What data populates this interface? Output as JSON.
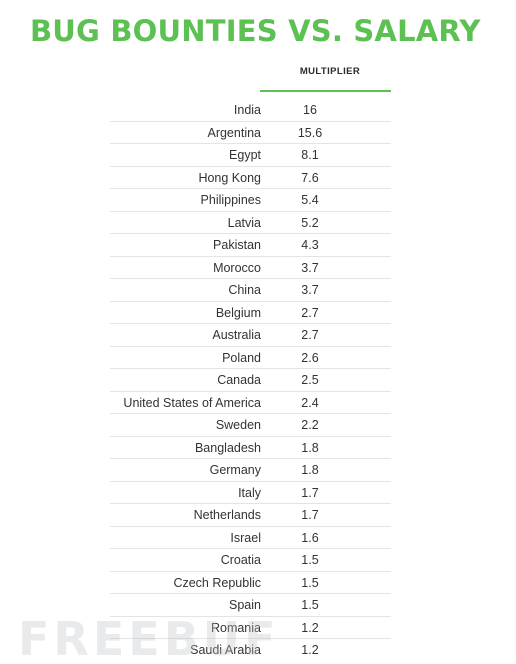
{
  "chart_data": {
    "type": "table",
    "title": "BUG BOUNTIES VS. SALARY",
    "column_header": "MULTIPLIER",
    "rows": [
      {
        "country": "India",
        "multiplier": "16"
      },
      {
        "country": "Argentina",
        "multiplier": "15.6"
      },
      {
        "country": "Egypt",
        "multiplier": "8.1"
      },
      {
        "country": "Hong Kong",
        "multiplier": "7.6"
      },
      {
        "country": "Philippines",
        "multiplier": "5.4"
      },
      {
        "country": "Latvia",
        "multiplier": "5.2"
      },
      {
        "country": "Pakistan",
        "multiplier": "4.3"
      },
      {
        "country": "Morocco",
        "multiplier": "3.7"
      },
      {
        "country": "China",
        "multiplier": "3.7"
      },
      {
        "country": "Belgium",
        "multiplier": "2.7"
      },
      {
        "country": "Australia",
        "multiplier": "2.7"
      },
      {
        "country": "Poland",
        "multiplier": "2.6"
      },
      {
        "country": "Canada",
        "multiplier": "2.5"
      },
      {
        "country": "United States of America",
        "multiplier": "2.4"
      },
      {
        "country": "Sweden",
        "multiplier": "2.2"
      },
      {
        "country": "Bangladesh",
        "multiplier": "1.8"
      },
      {
        "country": "Germany",
        "multiplier": "1.8"
      },
      {
        "country": "Italy",
        "multiplier": "1.7"
      },
      {
        "country": "Netherlands",
        "multiplier": "1.7"
      },
      {
        "country": "Israel",
        "multiplier": "1.6"
      },
      {
        "country": "Croatia",
        "multiplier": "1.5"
      },
      {
        "country": "Czech Republic",
        "multiplier": "1.5"
      },
      {
        "country": "Spain",
        "multiplier": "1.5"
      },
      {
        "country": "Romania",
        "multiplier": "1.2"
      },
      {
        "country": "Saudi Arabia",
        "multiplier": "1.2"
      }
    ]
  },
  "colors": {
    "title": "#5cc052",
    "header_rule": "#5cc052",
    "row_divider": "#e4e4e4",
    "text": "#333333"
  },
  "watermark": "FREEBUF"
}
